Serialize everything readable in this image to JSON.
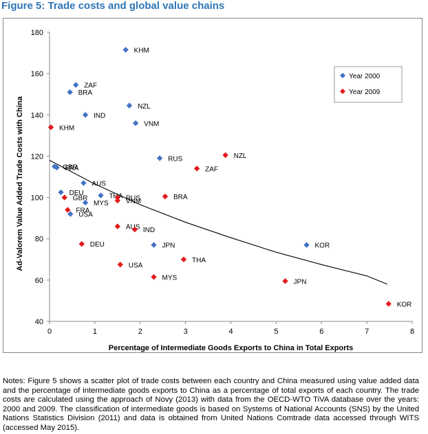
{
  "figure": {
    "title": "Figure 5: Trade costs and global value chains"
  },
  "notes": "Notes: Figure 5 shows a scatter plot of trade costs between each country and China measured using value added data and the percentage of intermediate goods exports to China as a percentage of total exports of each country. The trade costs are calculated using the approach of Novy (2013) with data from the OECD-WTO TiVA database over the years: 2000 and 2009. The classification of intermediate goods is based on Systems of National Accounts (SNS) by the United Nations Statistics Division (2011) and data is obtained from United Nations Comtrade data accessed through WITS (accessed May 2015).",
  "chart_data": {
    "type": "scatter",
    "title": "",
    "xlabel": "Percentage of Intermediate Goods Exports to China in Total Exports",
    "ylabel": "Ad-Valorem Value Added Trade Costs with China",
    "xlim": [
      0,
      8
    ],
    "ylim": [
      40,
      180
    ],
    "xticks": [
      "0",
      "1",
      "2",
      "3",
      "4",
      "5",
      "6",
      "7",
      "8"
    ],
    "yticks": [
      "40",
      "60",
      "80",
      "100",
      "120",
      "140",
      "160",
      "180"
    ],
    "grid": false,
    "legend_position": "top-right",
    "series": [
      {
        "name": "Year 2000",
        "color": "#4472C4",
        "marker": "diamond",
        "points": [
          {
            "label": "KHM",
            "x": 1.68,
            "y": 171.5
          },
          {
            "label": "ZAF",
            "x": 0.58,
            "y": 154.5
          },
          {
            "label": "BRA",
            "x": 0.45,
            "y": 151
          },
          {
            "label": "NZL",
            "x": 1.76,
            "y": 144.5
          },
          {
            "label": "IND",
            "x": 0.79,
            "y": 140
          },
          {
            "label": "VNM",
            "x": 1.9,
            "y": 136
          },
          {
            "label": "RUS",
            "x": 2.43,
            "y": 119
          },
          {
            "label": "GBR",
            "x": 0.11,
            "y": 115
          },
          {
            "label": "FRA",
            "x": 0.16,
            "y": 114.5
          },
          {
            "label": "AUS",
            "x": 0.75,
            "y": 107
          },
          {
            "label": "DEU",
            "x": 0.25,
            "y": 102.5
          },
          {
            "label": "THA",
            "x": 1.13,
            "y": 101
          },
          {
            "label": "MYS",
            "x": 0.79,
            "y": 97.5
          },
          {
            "label": "USA",
            "x": 0.46,
            "y": 92
          },
          {
            "label": "JPN",
            "x": 2.3,
            "y": 77
          },
          {
            "label": "KOR",
            "x": 5.67,
            "y": 77
          }
        ]
      },
      {
        "name": "Year 2009",
        "color": "#E41A1C",
        "marker": "diamond",
        "points": [
          {
            "label": "KHM",
            "x": 0.03,
            "y": 134
          },
          {
            "label": "NZL",
            "x": 3.88,
            "y": 120.5
          },
          {
            "label": "ZAF",
            "x": 3.25,
            "y": 114
          },
          {
            "label": "GBR",
            "x": 0.33,
            "y": 100
          },
          {
            "label": "RUS",
            "x": 1.5,
            "y": 100
          },
          {
            "label": "VNM",
            "x": 1.5,
            "y": 98.5
          },
          {
            "label": "BRA",
            "x": 2.55,
            "y": 100.5
          },
          {
            "label": "FRA",
            "x": 0.4,
            "y": 94
          },
          {
            "label": "AUS",
            "x": 1.5,
            "y": 86
          },
          {
            "label": "IND",
            "x": 1.88,
            "y": 84.5
          },
          {
            "label": "DEU",
            "x": 0.71,
            "y": 77.5
          },
          {
            "label": "USA",
            "x": 1.56,
            "y": 67.5
          },
          {
            "label": "THA",
            "x": 2.96,
            "y": 70
          },
          {
            "label": "MYS",
            "x": 2.3,
            "y": 61.5
          },
          {
            "label": "JPN",
            "x": 5.2,
            "y": 59.5
          },
          {
            "label": "KOR",
            "x": 7.48,
            "y": 48.5
          }
        ]
      }
    ],
    "trendline": {
      "type": "power",
      "color": "#000000",
      "points": [
        [
          0,
          118
        ],
        [
          1,
          106.5
        ],
        [
          2,
          96.5
        ],
        [
          3,
          88
        ],
        [
          4,
          80.5
        ],
        [
          5,
          73.5
        ],
        [
          6,
          67.5
        ],
        [
          7,
          62
        ],
        [
          7.45,
          58
        ]
      ]
    }
  }
}
